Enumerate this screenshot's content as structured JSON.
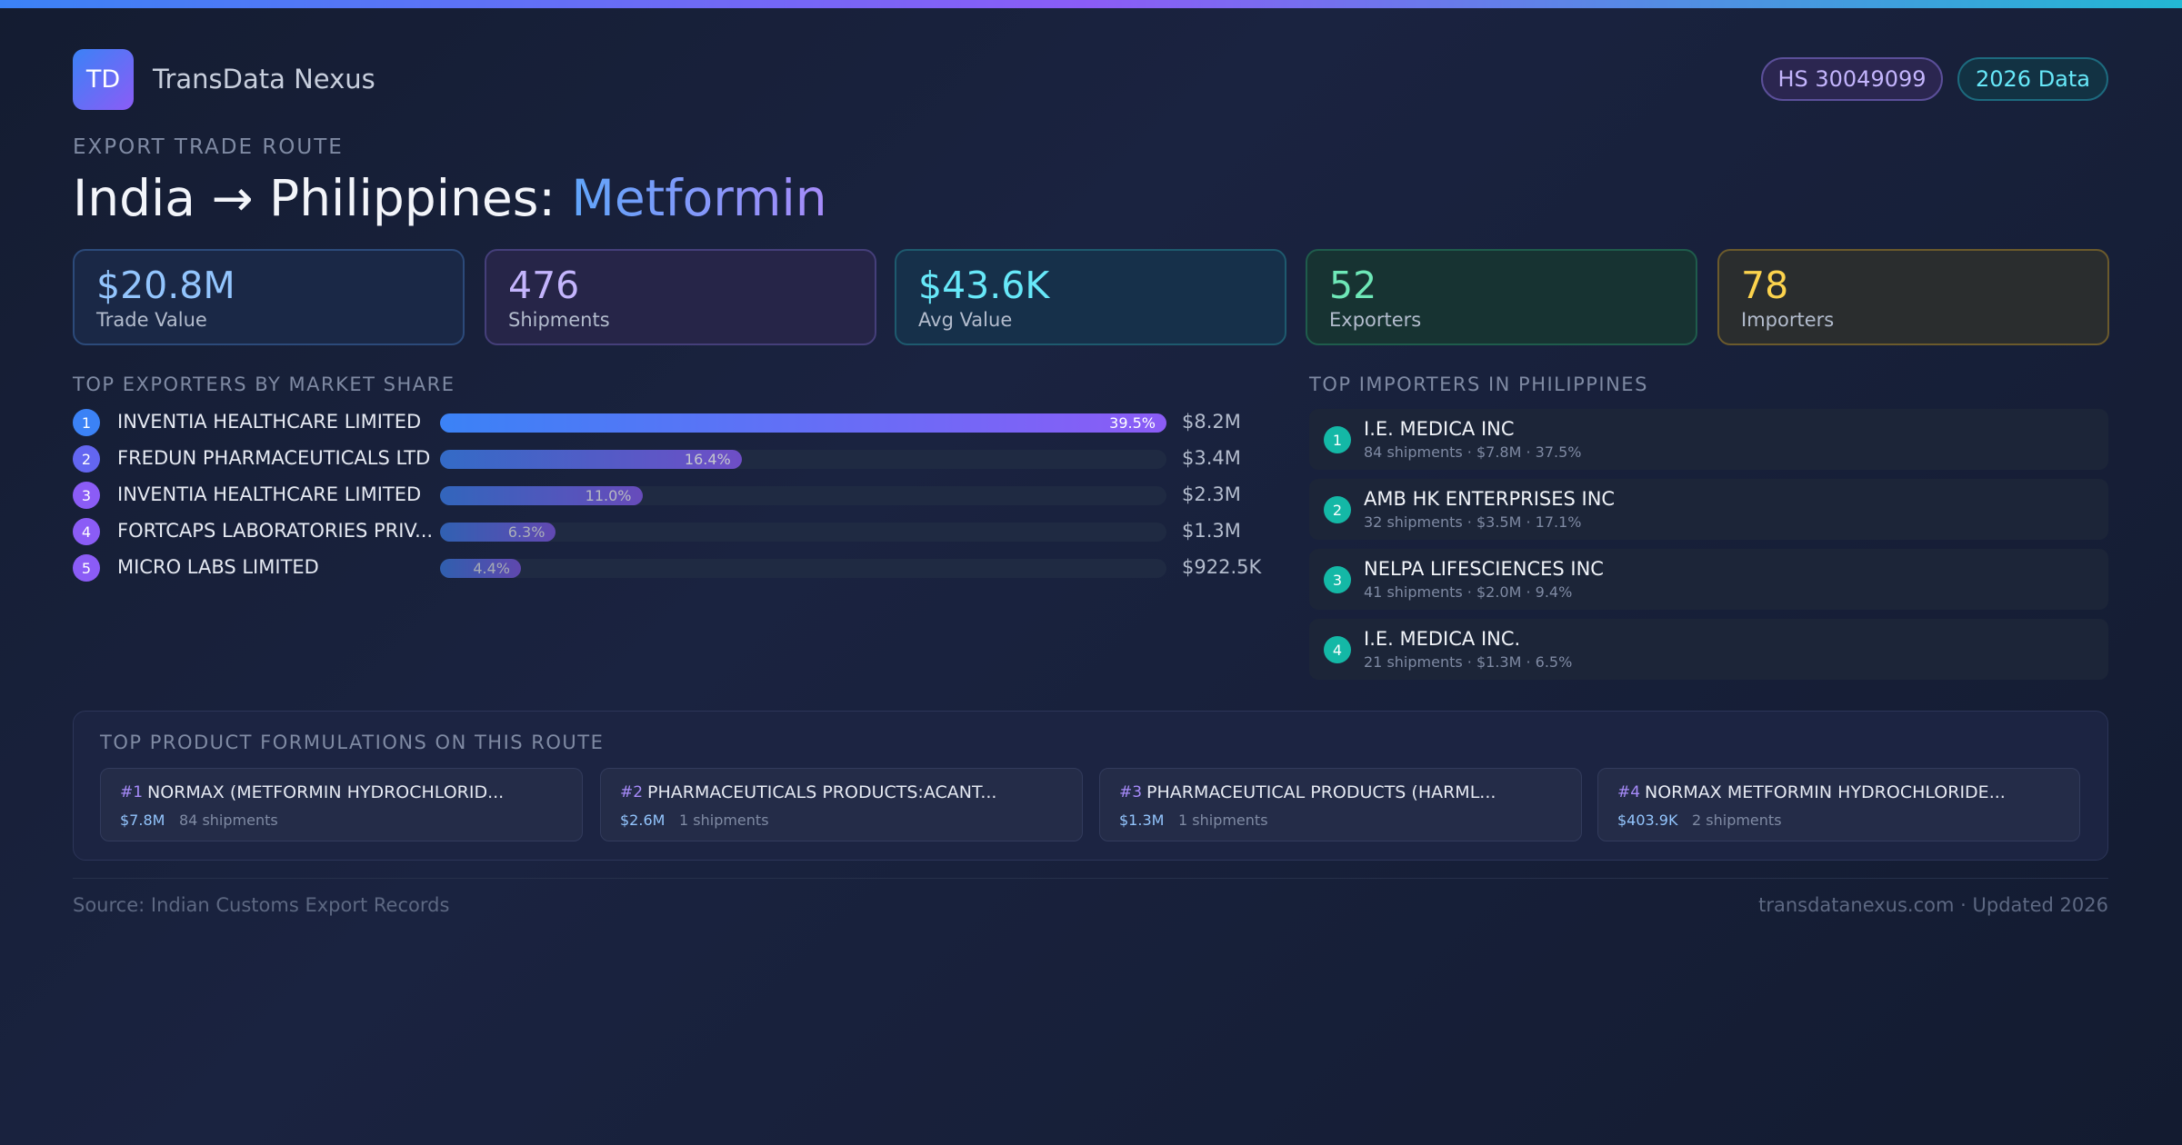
{
  "header": {
    "logo": "TD",
    "brand": "TransData Nexus",
    "badges": [
      "HS 30049099",
      "2026 Data"
    ]
  },
  "eyebrow": "EXPORT TRADE ROUTE",
  "title": {
    "route": "India → Philippines:",
    "product": "Metformin"
  },
  "stats": [
    {
      "value": "$20.8M",
      "label": "Trade Value"
    },
    {
      "value": "476",
      "label": "Shipments"
    },
    {
      "value": "$43.6K",
      "label": "Avg Value"
    },
    {
      "value": "52",
      "label": "Exporters"
    },
    {
      "value": "78",
      "label": "Importers"
    }
  ],
  "exporters": {
    "heading": "TOP EXPORTERS BY MARKET SHARE",
    "rows": [
      {
        "rank": "1",
        "name": "INVENTIA HEALTHCARE LIMITED",
        "share": 39.5,
        "share_label": "39.5%",
        "value": "$8.2M"
      },
      {
        "rank": "2",
        "name": "FREDUN PHARMACEUTICALS LTD",
        "share": 16.4,
        "share_label": "16.4%",
        "value": "$3.4M"
      },
      {
        "rank": "3",
        "name": "INVENTIA HEALTHCARE LIMITED",
        "share": 11.0,
        "share_label": "11.0%",
        "value": "$2.3M"
      },
      {
        "rank": "4",
        "name": "FORTCAPS LABORATORIES PRIV...",
        "share": 6.3,
        "share_label": "6.3%",
        "value": "$1.3M"
      },
      {
        "rank": "5",
        "name": "MICRO LABS LIMITED",
        "share": 4.4,
        "share_label": "4.4%",
        "value": "$922.5K"
      }
    ]
  },
  "importers": {
    "heading": "TOP IMPORTERS IN PHILIPPINES",
    "rows": [
      {
        "rank": "1",
        "name": "I.E. MEDICA INC",
        "detail": "84 shipments · $7.8M · 37.5%"
      },
      {
        "rank": "2",
        "name": "AMB HK ENTERPRISES INC",
        "detail": "32 shipments · $3.5M · 17.1%"
      },
      {
        "rank": "3",
        "name": "NELPA LIFESCIENCES INC",
        "detail": "41 shipments · $2.0M · 9.4%"
      },
      {
        "rank": "4",
        "name": "I.E. MEDICA INC.",
        "detail": "21 shipments · $1.3M · 6.5%"
      }
    ]
  },
  "formulations": {
    "heading": "TOP PRODUCT FORMULATIONS ON THIS ROUTE",
    "items": [
      {
        "rank": "#1",
        "name": "NORMAX (METFORMIN HYDROCHLORID...",
        "value": "$7.8M",
        "shipments": "84 shipments"
      },
      {
        "rank": "#2",
        "name": "PHARMACEUTICALS PRODUCTS:ACANT...",
        "value": "$2.6M",
        "shipments": "1 shipments"
      },
      {
        "rank": "#3",
        "name": "PHARMACEUTICAL PRODUCTS (HARML...",
        "value": "$1.3M",
        "shipments": "1 shipments"
      },
      {
        "rank": "#4",
        "name": "NORMAX METFORMIN HYDROCHLORIDE...",
        "value": "$403.9K",
        "shipments": "2 shipments"
      }
    ]
  },
  "footer": {
    "source": "Source: Indian Customs Export Records",
    "site": "transdatanexus.com · Updated 2026"
  }
}
